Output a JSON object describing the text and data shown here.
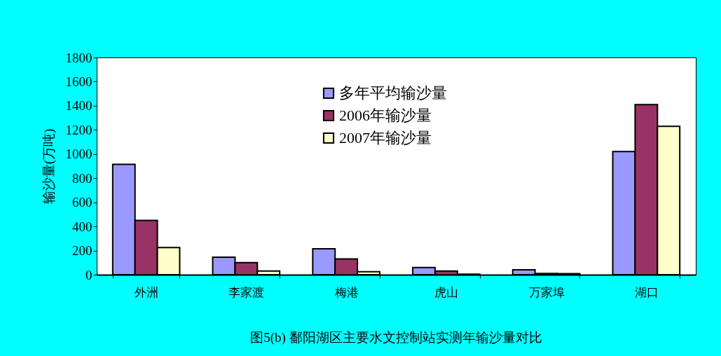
{
  "chart_data": {
    "type": "bar",
    "title": "图5(b) 鄱阳湖区主要水文控制站实测年输沙量对比",
    "ylabel": "输沙量(万吨)",
    "categories": [
      "外洲",
      "李家渡",
      "梅港",
      "虎山",
      "万家埠",
      "湖口"
    ],
    "series": [
      {
        "name": "多年平均输沙量",
        "color": "#9999ff",
        "values": [
          915,
          145,
          215,
          60,
          40,
          1020
        ]
      },
      {
        "name": "2006年输沙量",
        "color": "#993366",
        "values": [
          450,
          100,
          130,
          30,
          10,
          1410
        ]
      },
      {
        "name": "2007年输沙量",
        "color": "#ffffcc",
        "values": [
          225,
          30,
          25,
          5,
          8,
          1230
        ]
      }
    ],
    "ylim": [
      0,
      1800
    ],
    "yticks": [
      0,
      200,
      400,
      600,
      800,
      1000,
      1200,
      1400,
      1600,
      1800
    ],
    "grid": false,
    "legend": "top"
  }
}
